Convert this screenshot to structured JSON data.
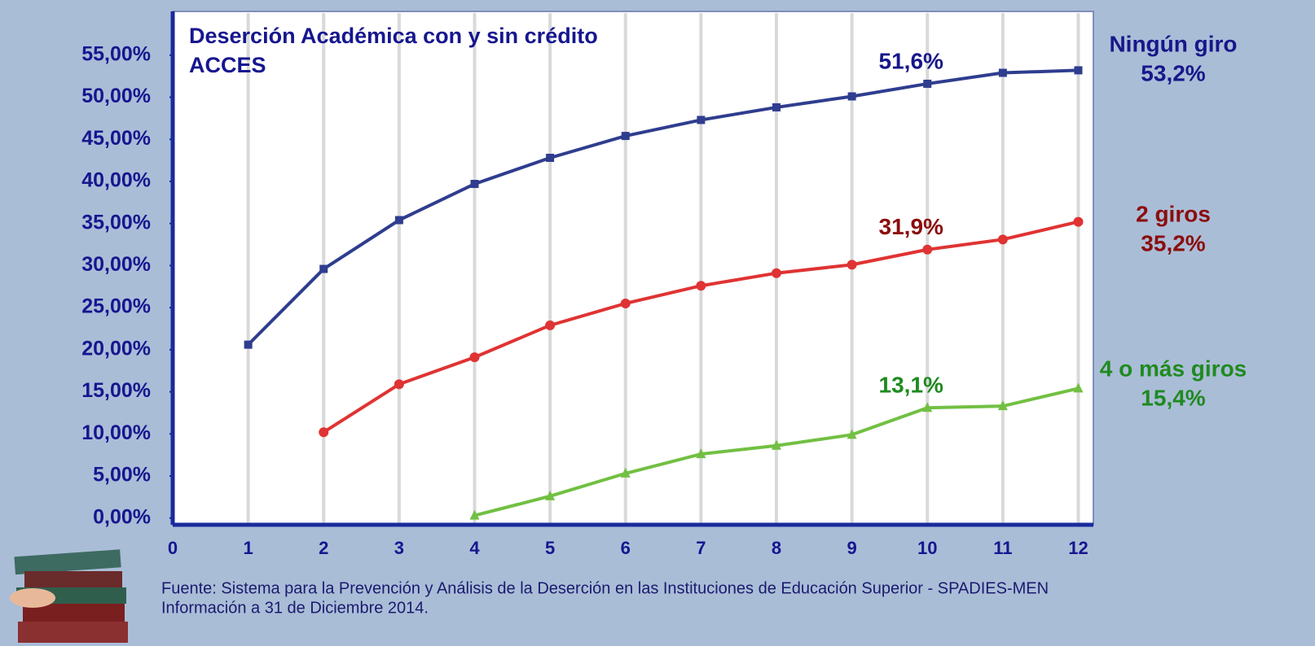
{
  "chart_data": {
    "type": "line",
    "title": [
      "Deserción Académica con y sin crédito",
      "ACCES"
    ],
    "x": [
      1,
      2,
      3,
      4,
      5,
      6,
      7,
      8,
      9,
      10,
      11,
      12
    ],
    "series": [
      {
        "name": "Ningún giro",
        "color": "#2f3d8f",
        "label_color": "#17178a",
        "marker": "square",
        "values": [
          20.6,
          29.6,
          35.4,
          39.7,
          42.8,
          45.4,
          47.3,
          48.8,
          50.1,
          51.6,
          52.9,
          53.2
        ],
        "value_labels": [
          null,
          null,
          null,
          null,
          null,
          null,
          null,
          null,
          null,
          "51,6%",
          null,
          "53,2%"
        ]
      },
      {
        "name": "2 giros",
        "color": "#e03333",
        "label_color": "#8b0d0d",
        "marker": "circle",
        "values": [
          null,
          10.2,
          15.9,
          19.1,
          22.9,
          25.5,
          27.6,
          29.1,
          30.1,
          31.9,
          33.1,
          35.2
        ],
        "value_labels": [
          null,
          null,
          null,
          null,
          null,
          null,
          null,
          null,
          null,
          "31,9%",
          null,
          "35,2%"
        ]
      },
      {
        "name": "4 o más giros",
        "color": "#72c043",
        "label_color": "#1f8a1f",
        "marker": "triangle",
        "values": [
          null,
          null,
          null,
          0.3,
          2.6,
          5.3,
          7.6,
          8.6,
          9.9,
          13.1,
          13.3,
          15.4
        ],
        "value_labels": [
          null,
          null,
          null,
          null,
          null,
          null,
          null,
          null,
          null,
          "13,1%",
          null,
          "15,4%"
        ]
      }
    ],
    "xlim": [
      0,
      12.2
    ],
    "xticks": [
      0,
      1,
      2,
      3,
      4,
      5,
      6,
      7,
      8,
      9,
      10,
      11,
      12
    ],
    "ylim": [
      -0.8,
      60.2
    ],
    "yticks": [
      {
        "value": 0,
        "label": "0,00%"
      },
      {
        "value": 5,
        "label": "5,00%"
      },
      {
        "value": 10,
        "label": "10,00%"
      },
      {
        "value": 15,
        "label": "15,00%"
      },
      {
        "value": 20,
        "label": "20,00%"
      },
      {
        "value": 25,
        "label": "25,00%"
      },
      {
        "value": 30,
        "label": "30,00%"
      },
      {
        "value": 35,
        "label": "35,00%"
      },
      {
        "value": 40,
        "label": "40,00%"
      },
      {
        "value": 45,
        "label": "45,00%"
      },
      {
        "value": 50,
        "label": "50,00%"
      },
      {
        "value": 55,
        "label": "55,00%"
      }
    ],
    "grid": "x",
    "source": [
      "Fuente: Sistema para la Prevención y Análisis de la Deserción en las Instituciones de Educación Superior - SPADIES-MEN",
      "Información a 31 de Diciembre 2014."
    ]
  }
}
